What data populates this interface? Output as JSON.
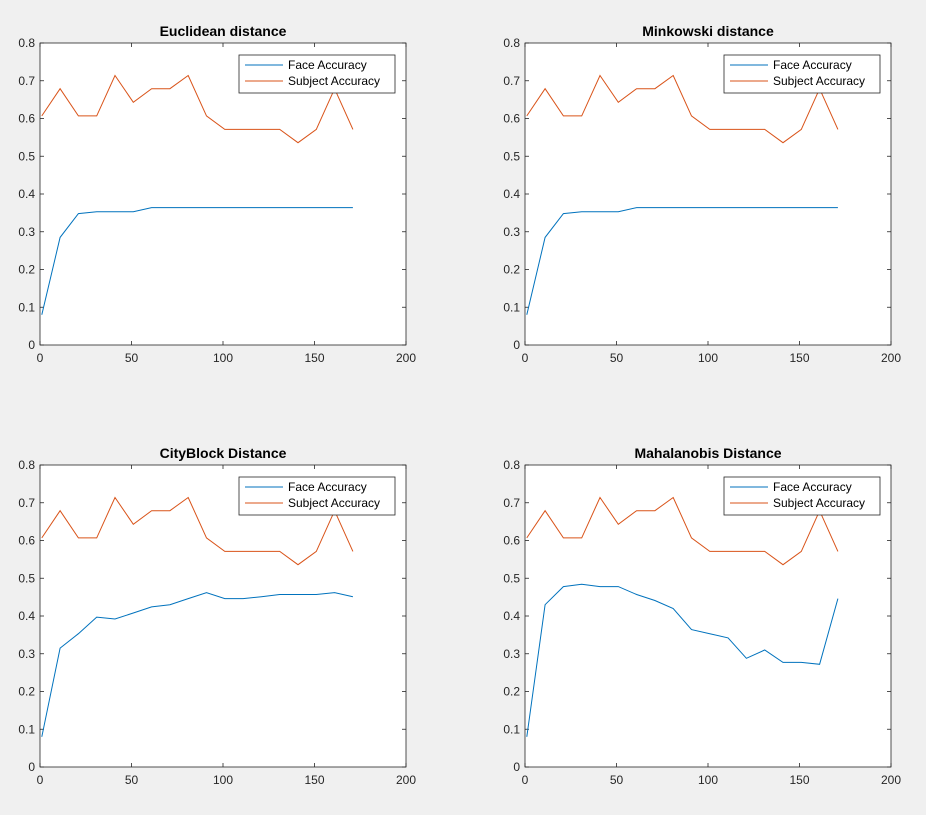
{
  "colors": {
    "face": "#0072BD",
    "subject": "#D95319",
    "axes_bg": "#ffffff",
    "figure_bg": "#f0f0f0"
  },
  "chart_data": [
    {
      "type": "line",
      "title": "Euclidean distance",
      "xlim": [
        0,
        200
      ],
      "ylim": [
        0,
        0.8
      ],
      "xticks": [
        0,
        50,
        100,
        150,
        200
      ],
      "yticks": [
        0,
        0.1,
        0.2,
        0.3,
        0.4,
        0.5,
        0.6,
        0.7,
        0.8
      ],
      "legend_position": "top-right",
      "x": [
        1,
        11,
        21,
        31,
        41,
        51,
        61,
        71,
        81,
        91,
        101,
        111,
        121,
        131,
        141,
        151,
        161,
        171
      ],
      "series": [
        {
          "name": "Face Accuracy",
          "values": [
            0.08,
            0.285,
            0.348,
            0.353,
            0.353,
            0.353,
            0.364,
            0.364,
            0.364,
            0.364,
            0.364,
            0.364,
            0.364,
            0.364,
            0.364,
            0.364,
            0.364,
            0.364
          ]
        },
        {
          "name": "Subject Accuracy",
          "values": [
            0.607,
            0.679,
            0.607,
            0.607,
            0.714,
            0.643,
            0.679,
            0.679,
            0.714,
            0.607,
            0.571,
            0.571,
            0.571,
            0.571,
            0.536,
            0.571,
            0.679,
            0.571
          ]
        }
      ]
    },
    {
      "type": "line",
      "title": "Minkowski distance",
      "xlim": [
        0,
        200
      ],
      "ylim": [
        0,
        0.8
      ],
      "xticks": [
        0,
        50,
        100,
        150,
        200
      ],
      "yticks": [
        0,
        0.1,
        0.2,
        0.3,
        0.4,
        0.5,
        0.6,
        0.7,
        0.8
      ],
      "legend_position": "top-right",
      "x": [
        1,
        11,
        21,
        31,
        41,
        51,
        61,
        71,
        81,
        91,
        101,
        111,
        121,
        131,
        141,
        151,
        161,
        171
      ],
      "series": [
        {
          "name": "Face Accuracy",
          "values": [
            0.08,
            0.285,
            0.348,
            0.353,
            0.353,
            0.353,
            0.364,
            0.364,
            0.364,
            0.364,
            0.364,
            0.364,
            0.364,
            0.364,
            0.364,
            0.364,
            0.364,
            0.364
          ]
        },
        {
          "name": "Subject Accuracy",
          "values": [
            0.607,
            0.679,
            0.607,
            0.607,
            0.714,
            0.643,
            0.679,
            0.679,
            0.714,
            0.607,
            0.571,
            0.571,
            0.571,
            0.571,
            0.536,
            0.571,
            0.679,
            0.571
          ]
        }
      ]
    },
    {
      "type": "line",
      "title": "CityBlock Distance",
      "xlim": [
        0,
        200
      ],
      "ylim": [
        0,
        0.8
      ],
      "xticks": [
        0,
        50,
        100,
        150,
        200
      ],
      "yticks": [
        0,
        0.1,
        0.2,
        0.3,
        0.4,
        0.5,
        0.6,
        0.7,
        0.8
      ],
      "legend_position": "top-right",
      "x": [
        1,
        11,
        21,
        31,
        41,
        51,
        61,
        71,
        81,
        91,
        101,
        111,
        121,
        131,
        141,
        151,
        161,
        171
      ],
      "series": [
        {
          "name": "Face Accuracy",
          "values": [
            0.08,
            0.315,
            0.353,
            0.397,
            0.392,
            0.408,
            0.424,
            0.43,
            0.446,
            0.462,
            0.446,
            0.446,
            0.451,
            0.457,
            0.457,
            0.457,
            0.462,
            0.451
          ]
        },
        {
          "name": "Subject Accuracy",
          "values": [
            0.607,
            0.679,
            0.607,
            0.607,
            0.714,
            0.643,
            0.679,
            0.679,
            0.714,
            0.607,
            0.571,
            0.571,
            0.571,
            0.571,
            0.536,
            0.571,
            0.679,
            0.571
          ]
        }
      ]
    },
    {
      "type": "line",
      "title": "Mahalanobis Distance",
      "xlim": [
        0,
        200
      ],
      "ylim": [
        0,
        0.8
      ],
      "xticks": [
        0,
        50,
        100,
        150,
        200
      ],
      "yticks": [
        0,
        0.1,
        0.2,
        0.3,
        0.4,
        0.5,
        0.6,
        0.7,
        0.8
      ],
      "legend_position": "top-right",
      "x": [
        1,
        11,
        21,
        31,
        41,
        51,
        61,
        71,
        81,
        91,
        101,
        111,
        121,
        131,
        141,
        151,
        161,
        171
      ],
      "series": [
        {
          "name": "Face Accuracy",
          "values": [
            0.08,
            0.43,
            0.478,
            0.484,
            0.478,
            0.478,
            0.457,
            0.441,
            0.42,
            0.364,
            0.353,
            0.342,
            0.288,
            0.31,
            0.277,
            0.277,
            0.272,
            0.446
          ]
        },
        {
          "name": "Subject Accuracy",
          "values": [
            0.607,
            0.679,
            0.607,
            0.607,
            0.714,
            0.643,
            0.679,
            0.679,
            0.714,
            0.607,
            0.571,
            0.571,
            0.571,
            0.571,
            0.536,
            0.571,
            0.679,
            0.571
          ]
        }
      ]
    }
  ]
}
